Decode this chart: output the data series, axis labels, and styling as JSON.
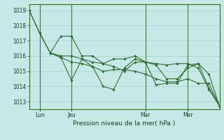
{
  "background_color": "#c8e8e8",
  "grid_color": "#aacccc",
  "line_color": "#2d6e2d",
  "marker_color": "#2d6e2d",
  "ylabel_ticks": [
    1013,
    1014,
    1015,
    1016,
    1017,
    1018,
    1019
  ],
  "xlabel": "Pression niveau de la mer( hPa )",
  "xtick_labels": [
    "Lun",
    "Jeu",
    "Mar",
    "Mer"
  ],
  "xtick_positions": [
    1,
    4,
    11,
    15
  ],
  "vline_positions": [
    1,
    4,
    11,
    15
  ],
  "ylim": [
    1012.5,
    1019.4
  ],
  "xlim": [
    0,
    18
  ],
  "series1": {
    "x": [
      0,
      1,
      2,
      3,
      4,
      5,
      6,
      7,
      8,
      9,
      10,
      11,
      12,
      13,
      14,
      15,
      16,
      17,
      18
    ],
    "y": [
      1019.0,
      1017.5,
      1016.2,
      1017.3,
      1017.3,
      1016.0,
      1016.0,
      1015.5,
      1015.8,
      1015.8,
      1016.0,
      1015.6,
      1015.5,
      1015.4,
      1015.5,
      1015.5,
      1015.2,
      1013.8,
      1012.7
    ]
  },
  "series2": {
    "x": [
      0,
      1,
      2,
      3,
      4,
      5,
      6,
      7,
      8,
      9,
      10,
      11,
      12,
      13,
      14,
      15,
      16,
      17,
      18
    ],
    "y": [
      1019.0,
      1017.5,
      1016.2,
      1015.9,
      1014.4,
      1015.8,
      1015.3,
      1014.0,
      1013.8,
      1015.2,
      1015.8,
      1015.6,
      1014.1,
      1014.2,
      1014.2,
      1015.4,
      1015.5,
      1013.9,
      1012.7
    ]
  },
  "series3": {
    "x": [
      2,
      3,
      4,
      5,
      6,
      7,
      8,
      9,
      10,
      11,
      12,
      13,
      14,
      15,
      16,
      17,
      18
    ],
    "y": [
      1016.2,
      1016.0,
      1016.0,
      1015.8,
      1015.6,
      1015.5,
      1015.3,
      1015.0,
      1015.6,
      1015.6,
      1015.4,
      1014.5,
      1014.5,
      1015.2,
      1015.5,
      1014.8,
      1012.7
    ]
  },
  "series4": {
    "x": [
      2,
      3,
      4,
      5,
      6,
      7,
      8,
      9,
      10,
      11,
      12,
      13,
      14,
      15,
      16,
      17,
      18
    ],
    "y": [
      1016.2,
      1015.9,
      1015.6,
      1015.5,
      1015.3,
      1015.0,
      1015.1,
      1015.1,
      1015.0,
      1014.8,
      1014.5,
      1014.3,
      1014.3,
      1014.5,
      1014.2,
      1014.2,
      1012.7
    ]
  }
}
